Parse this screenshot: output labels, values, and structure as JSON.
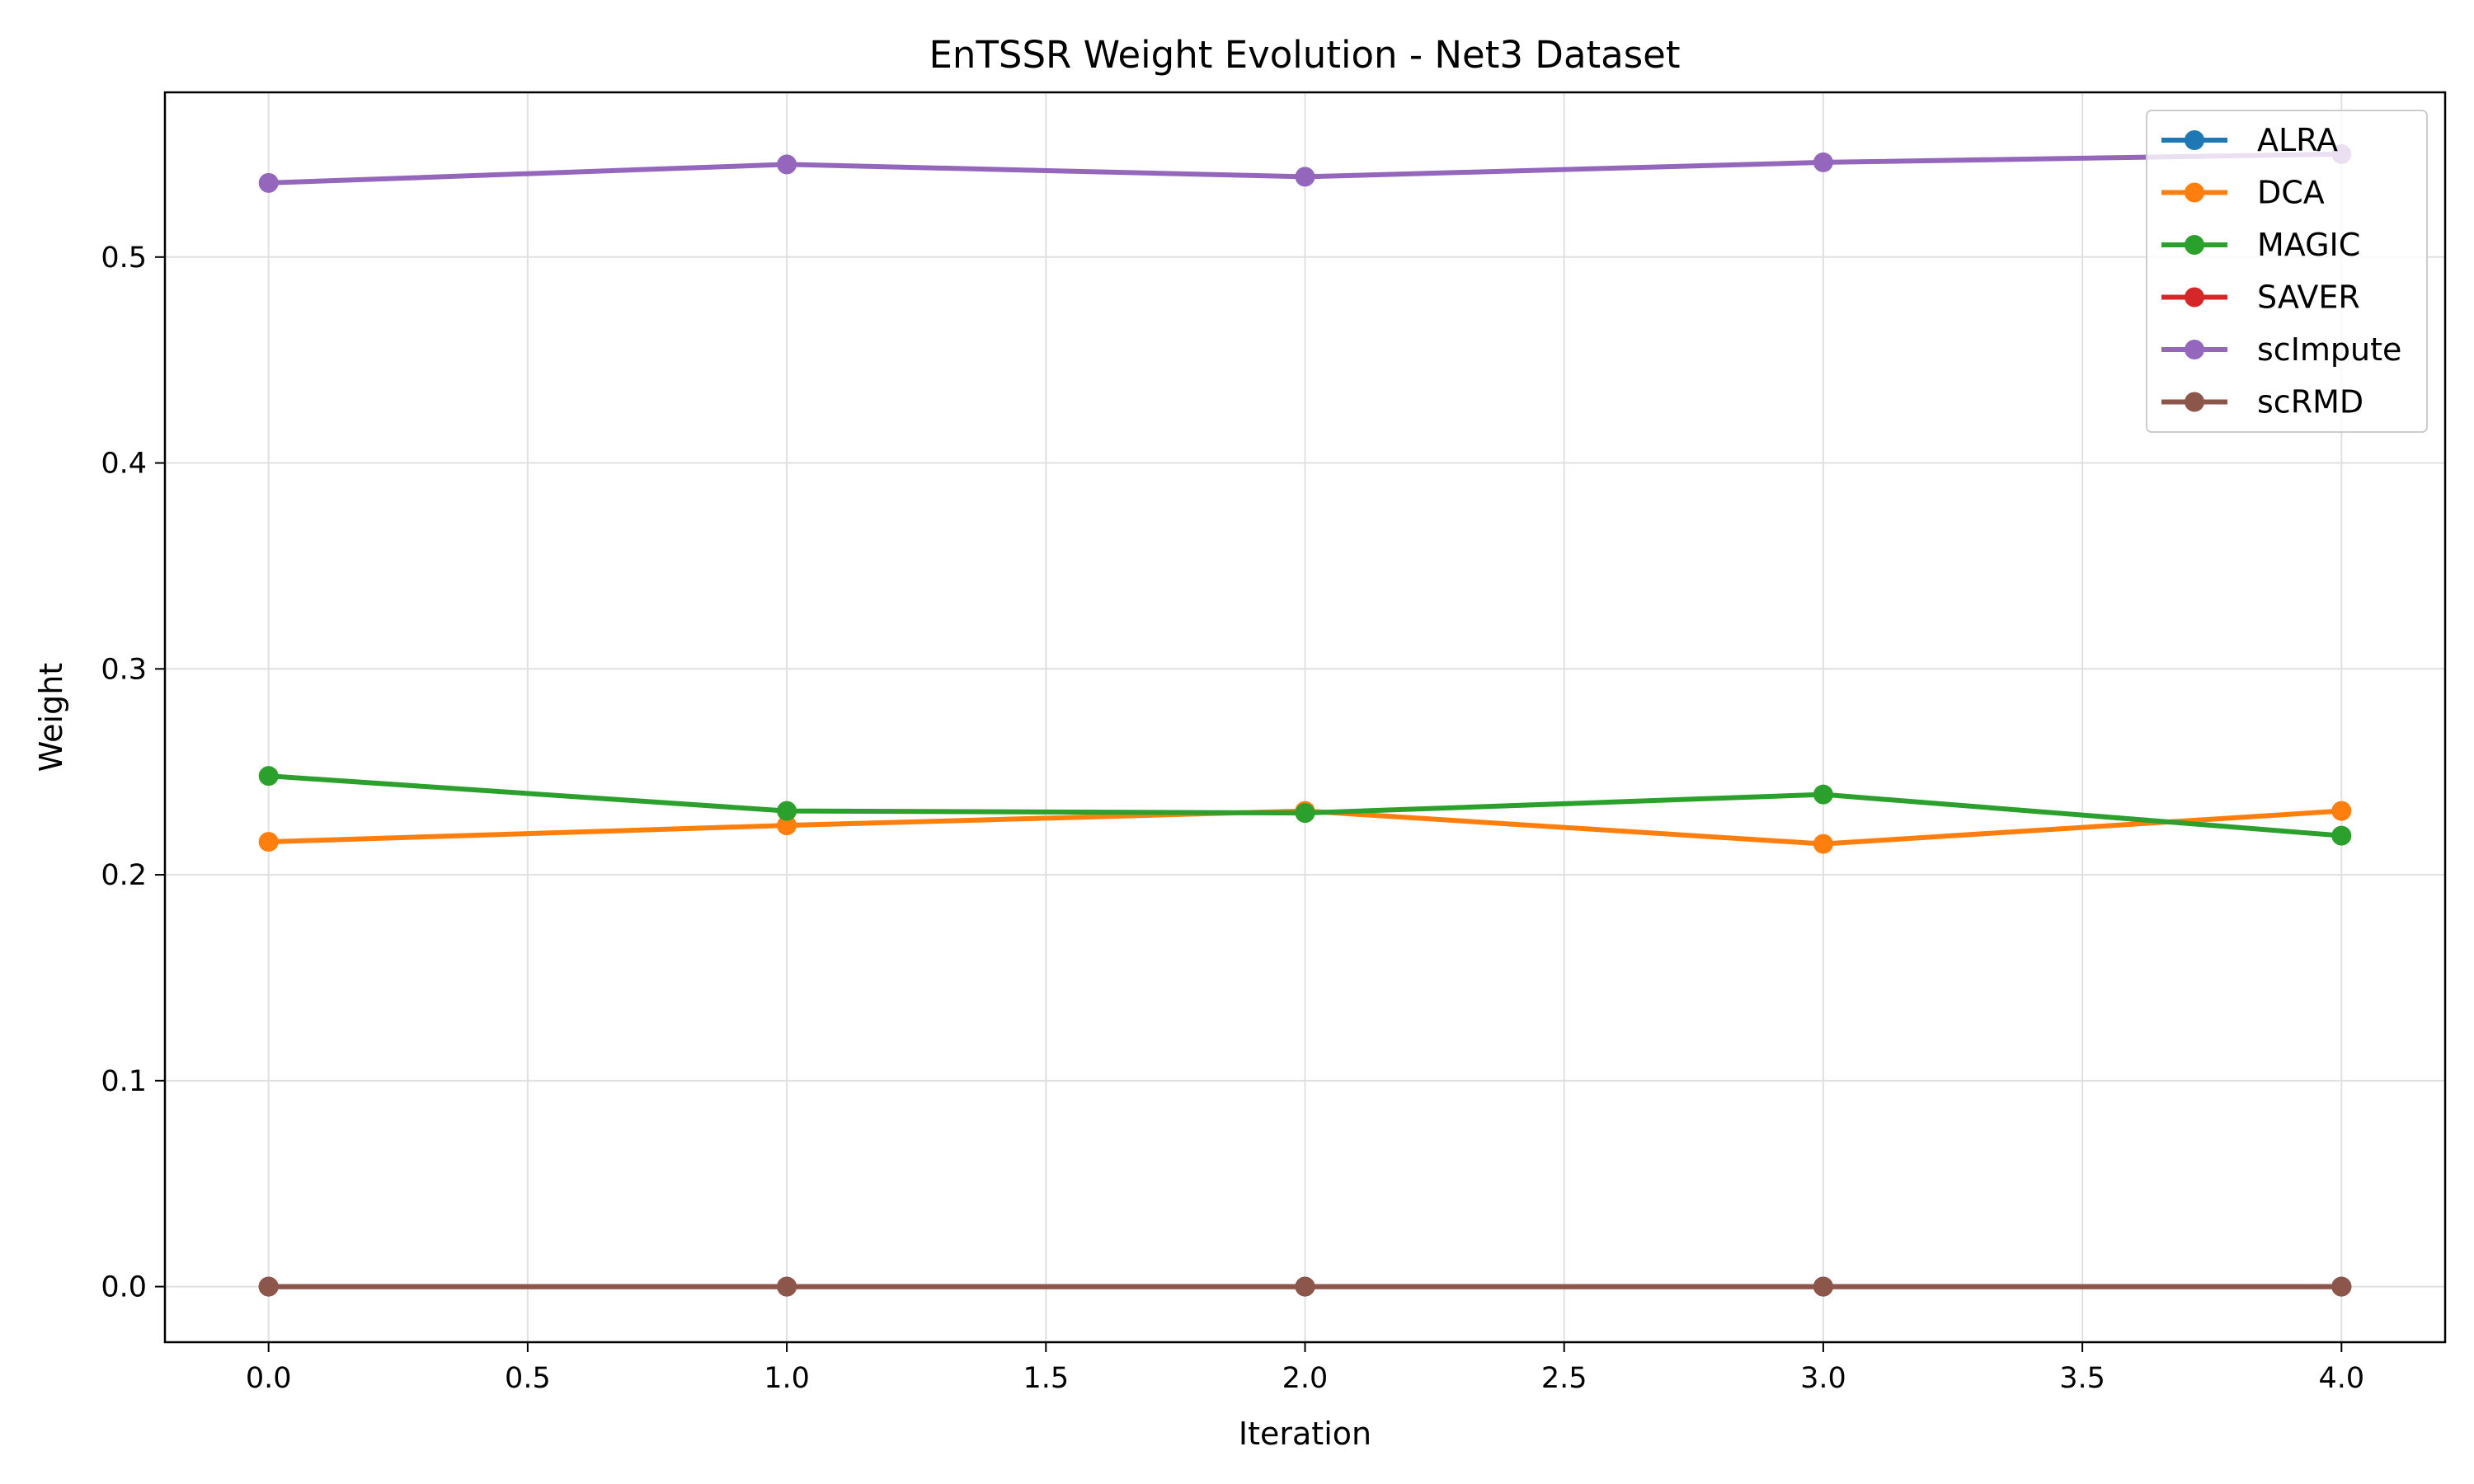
{
  "colors": {
    "ALRA": "#1f77b4",
    "DCA": "#ff7f0e",
    "MAGIC": "#2ca02c",
    "SAVER": "#d62728",
    "scImpute": "#9467bd",
    "scRMD": "#8c564b",
    "grid": "#e0e0e0",
    "axis": "#000000"
  },
  "chart_data": {
    "type": "line",
    "title": "EnTSSR Weight Evolution - Net3 Dataset",
    "xlabel": "Iteration",
    "ylabel": "Weight",
    "x": [
      0,
      1,
      2,
      3,
      4
    ],
    "xlim": [
      -0.2,
      4.2
    ],
    "ylim": [
      -0.027,
      0.58
    ],
    "xticks": [
      0.0,
      0.5,
      1.0,
      1.5,
      2.0,
      2.5,
      3.0,
      3.5,
      4.0
    ],
    "xtick_labels": [
      "0.0",
      "0.5",
      "1.0",
      "1.5",
      "2.0",
      "2.5",
      "3.0",
      "3.5",
      "4.0"
    ],
    "yticks": [
      0.0,
      0.1,
      0.2,
      0.3,
      0.4,
      0.5
    ],
    "ytick_labels": [
      "0.0",
      "0.1",
      "0.2",
      "0.3",
      "0.4",
      "0.5"
    ],
    "grid": true,
    "legend_position": "top-right",
    "series": [
      {
        "name": "ALRA",
        "values": [
          0.0,
          0.0,
          0.0,
          0.0,
          0.0
        ]
      },
      {
        "name": "DCA",
        "values": [
          0.216,
          0.224,
          0.231,
          0.215,
          0.231
        ]
      },
      {
        "name": "MAGIC",
        "values": [
          0.248,
          0.231,
          0.23,
          0.239,
          0.219
        ]
      },
      {
        "name": "SAVER",
        "values": [
          0.0,
          0.0,
          0.0,
          0.0,
          0.0
        ]
      },
      {
        "name": "scImpute",
        "values": [
          0.536,
          0.545,
          0.539,
          0.546,
          0.55
        ]
      },
      {
        "name": "scRMD",
        "values": [
          0.0,
          0.0,
          0.0,
          0.0,
          0.0
        ]
      }
    ]
  }
}
